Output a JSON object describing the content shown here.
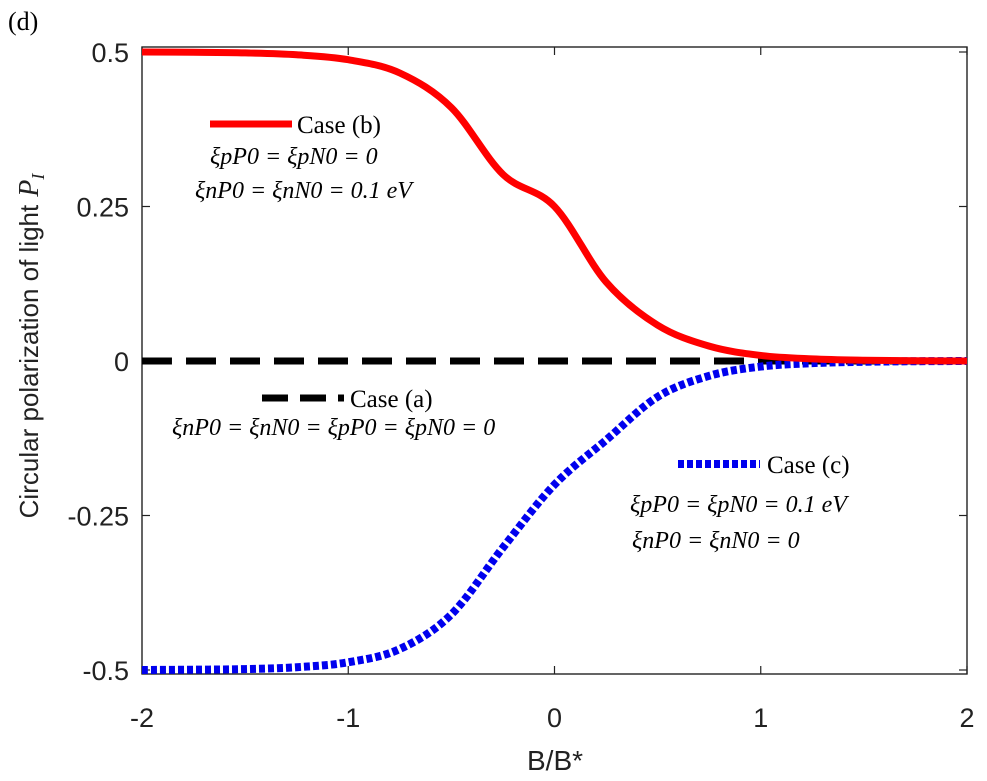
{
  "chart_data": {
    "type": "line",
    "panel_label": "(d)",
    "title": "",
    "xlabel": "B/B*",
    "ylabel": "Circular polarization of light",
    "ylabel_symbol": "P",
    "ylabel_subscript": "I",
    "xlim": [
      -2,
      2
    ],
    "ylim": [
      -0.5,
      0.5
    ],
    "xticks": [
      -2,
      -1,
      0,
      1,
      2
    ],
    "xtick_labels": [
      "-2",
      "-1",
      "0",
      "1",
      "2"
    ],
    "yticks": [
      0.5,
      0.25,
      0,
      -0.25,
      -0.5
    ],
    "ytick_labels": [
      "0.5",
      "0.25",
      "0",
      "-0.25",
      "-0.5"
    ],
    "grid": false,
    "x": [
      -2.0,
      -1.75,
      -1.5,
      -1.25,
      -1.0,
      -0.75,
      -0.5,
      -0.25,
      0.0,
      0.25,
      0.5,
      0.75,
      1.0,
      1.25,
      1.5,
      1.75,
      2.0
    ],
    "series": [
      {
        "name": "Case (b)",
        "style": "solid",
        "color": "#ff0000",
        "values": [
          0.5,
          0.4995,
          0.4985,
          0.4955,
          0.4875,
          0.466,
          0.41,
          0.302,
          0.25,
          0.128,
          0.058,
          0.024,
          0.009,
          0.0035,
          0.0013,
          0.0004,
          0.0
        ],
        "legend_lines": [
          "ξpP0 = ξpN0 = 0",
          "ξnP0 = ξnN0 = 0.1 eV"
        ]
      },
      {
        "name": "Case (a)",
        "style": "dashed",
        "color": "#000000",
        "values": [
          0,
          0,
          0,
          0,
          0,
          0,
          0,
          0,
          0,
          0,
          0,
          0,
          0,
          0,
          0,
          0,
          0
        ],
        "legend_lines": [
          "ξnP0 = ξnN0 = ξpP0 = ξpN0 = 0"
        ]
      },
      {
        "name": "Case (c)",
        "style": "dotted",
        "color": "#0000ee",
        "values": [
          -0.5,
          -0.4995,
          -0.4985,
          -0.4955,
          -0.4875,
          -0.466,
          -0.41,
          -0.302,
          -0.2,
          -0.128,
          -0.058,
          -0.024,
          -0.009,
          -0.0035,
          -0.0013,
          -0.0004,
          0.0
        ],
        "legend_lines": [
          "ξpP0 = ξpN0 = 0.1 eV",
          "ξnP0 = ξnN0 = 0"
        ]
      }
    ]
  }
}
